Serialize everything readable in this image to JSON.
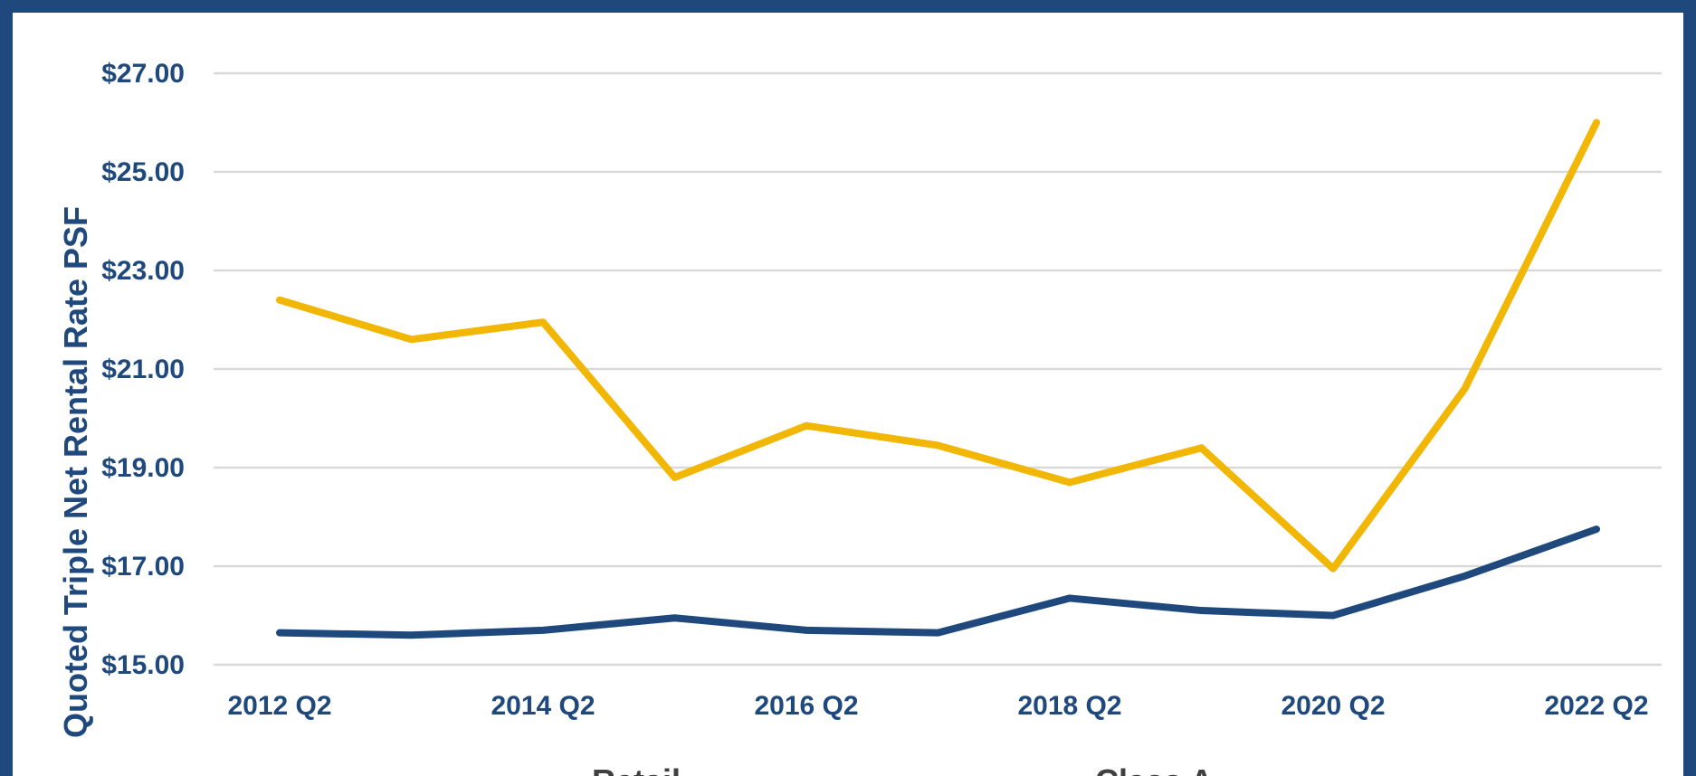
{
  "chart_data": {
    "type": "line",
    "title": "",
    "xlabel": "",
    "ylabel": "Quoted Triple Net Rental Rate PSF",
    "ylim": [
      15,
      27
    ],
    "yticks": [
      15,
      17,
      19,
      21,
      23,
      25,
      27
    ],
    "ytick_labels": [
      "$15.00",
      "$17.00",
      "$19.00",
      "$21.00",
      "$23.00",
      "$25.00",
      "$27.00"
    ],
    "x": [
      "2012 Q2",
      "2013 Q2",
      "2014 Q2",
      "2015 Q2",
      "2016 Q2",
      "2017 Q2",
      "2018 Q2",
      "2019 Q2",
      "2020 Q2",
      "2021 Q2",
      "2022 Q2"
    ],
    "xtick_labels": [
      "2012 Q2",
      "2014 Q2",
      "2016 Q2",
      "2018 Q2",
      "2020 Q2",
      "2022 Q2"
    ],
    "grid": true,
    "legend_position": "bottom",
    "series": [
      {
        "name": "Retail",
        "color": "#1f497d",
        "values": [
          15.65,
          15.6,
          15.7,
          15.95,
          15.7,
          15.65,
          16.35,
          16.1,
          16.0,
          16.8,
          17.75
        ]
      },
      {
        "name": "Class A",
        "color": "#f2b705",
        "values": [
          22.4,
          21.6,
          21.95,
          18.8,
          19.85,
          19.45,
          18.7,
          19.4,
          16.95,
          20.6,
          26.0
        ]
      }
    ]
  }
}
